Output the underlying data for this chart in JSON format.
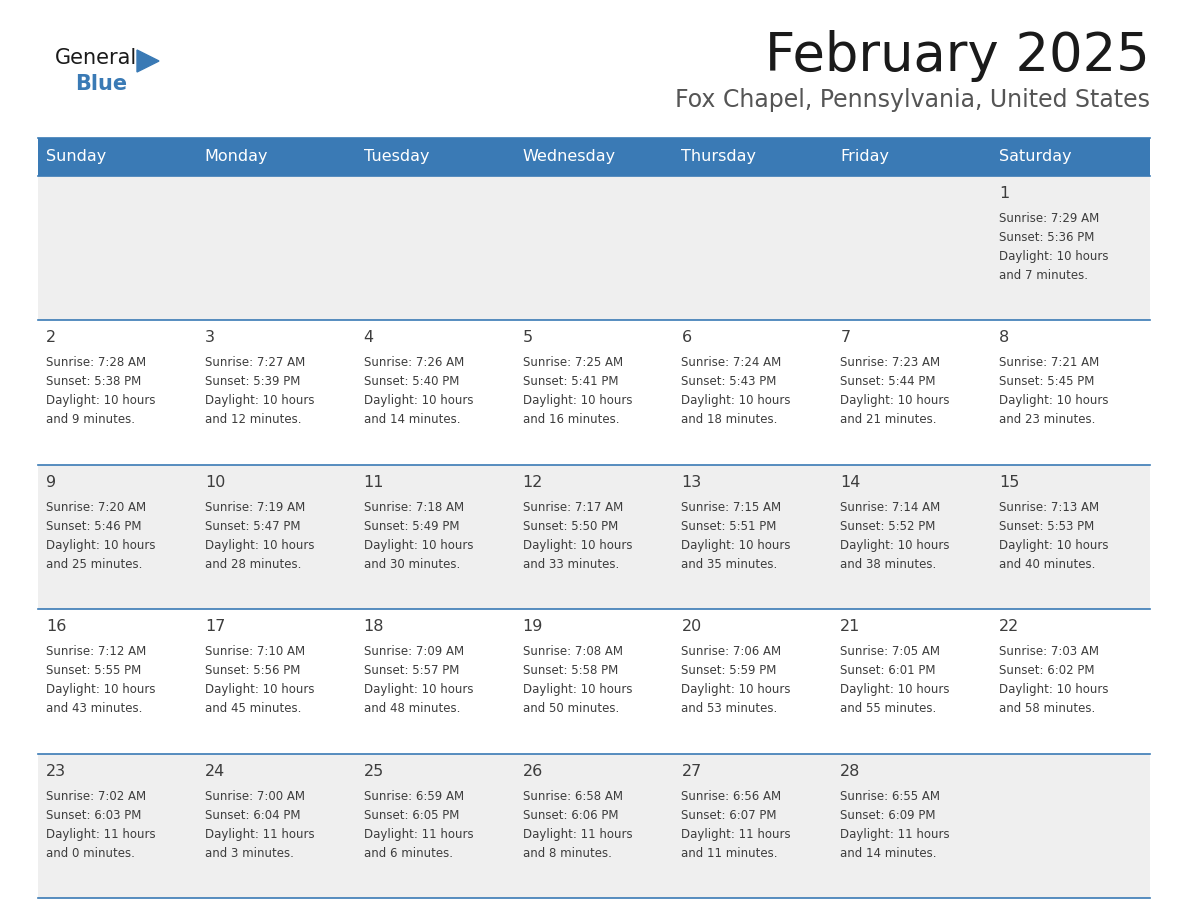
{
  "title": "February 2025",
  "subtitle": "Fox Chapel, Pennsylvania, United States",
  "header_color": "#3a7ab5",
  "header_text_color": "#ffffff",
  "cell_bg_light": "#efefef",
  "cell_bg_white": "#ffffff",
  "border_color": "#3a7ab5",
  "text_color": "#3d3d3d",
  "day_headers": [
    "Sunday",
    "Monday",
    "Tuesday",
    "Wednesday",
    "Thursday",
    "Friday",
    "Saturday"
  ],
  "calendar_data": [
    [
      null,
      null,
      null,
      null,
      null,
      null,
      {
        "day": "1",
        "sunrise": "7:29 AM",
        "sunset": "5:36 PM",
        "daylight": "10 hours",
        "daylight2": "and 7 minutes."
      }
    ],
    [
      {
        "day": "2",
        "sunrise": "7:28 AM",
        "sunset": "5:38 PM",
        "daylight": "10 hours",
        "daylight2": "and 9 minutes."
      },
      {
        "day": "3",
        "sunrise": "7:27 AM",
        "sunset": "5:39 PM",
        "daylight": "10 hours",
        "daylight2": "and 12 minutes."
      },
      {
        "day": "4",
        "sunrise": "7:26 AM",
        "sunset": "5:40 PM",
        "daylight": "10 hours",
        "daylight2": "and 14 minutes."
      },
      {
        "day": "5",
        "sunrise": "7:25 AM",
        "sunset": "5:41 PM",
        "daylight": "10 hours",
        "daylight2": "and 16 minutes."
      },
      {
        "day": "6",
        "sunrise": "7:24 AM",
        "sunset": "5:43 PM",
        "daylight": "10 hours",
        "daylight2": "and 18 minutes."
      },
      {
        "day": "7",
        "sunrise": "7:23 AM",
        "sunset": "5:44 PM",
        "daylight": "10 hours",
        "daylight2": "and 21 minutes."
      },
      {
        "day": "8",
        "sunrise": "7:21 AM",
        "sunset": "5:45 PM",
        "daylight": "10 hours",
        "daylight2": "and 23 minutes."
      }
    ],
    [
      {
        "day": "9",
        "sunrise": "7:20 AM",
        "sunset": "5:46 PM",
        "daylight": "10 hours",
        "daylight2": "and 25 minutes."
      },
      {
        "day": "10",
        "sunrise": "7:19 AM",
        "sunset": "5:47 PM",
        "daylight": "10 hours",
        "daylight2": "and 28 minutes."
      },
      {
        "day": "11",
        "sunrise": "7:18 AM",
        "sunset": "5:49 PM",
        "daylight": "10 hours",
        "daylight2": "and 30 minutes."
      },
      {
        "day": "12",
        "sunrise": "7:17 AM",
        "sunset": "5:50 PM",
        "daylight": "10 hours",
        "daylight2": "and 33 minutes."
      },
      {
        "day": "13",
        "sunrise": "7:15 AM",
        "sunset": "5:51 PM",
        "daylight": "10 hours",
        "daylight2": "and 35 minutes."
      },
      {
        "day": "14",
        "sunrise": "7:14 AM",
        "sunset": "5:52 PM",
        "daylight": "10 hours",
        "daylight2": "and 38 minutes."
      },
      {
        "day": "15",
        "sunrise": "7:13 AM",
        "sunset": "5:53 PM",
        "daylight": "10 hours",
        "daylight2": "and 40 minutes."
      }
    ],
    [
      {
        "day": "16",
        "sunrise": "7:12 AM",
        "sunset": "5:55 PM",
        "daylight": "10 hours",
        "daylight2": "and 43 minutes."
      },
      {
        "day": "17",
        "sunrise": "7:10 AM",
        "sunset": "5:56 PM",
        "daylight": "10 hours",
        "daylight2": "and 45 minutes."
      },
      {
        "day": "18",
        "sunrise": "7:09 AM",
        "sunset": "5:57 PM",
        "daylight": "10 hours",
        "daylight2": "and 48 minutes."
      },
      {
        "day": "19",
        "sunrise": "7:08 AM",
        "sunset": "5:58 PM",
        "daylight": "10 hours",
        "daylight2": "and 50 minutes."
      },
      {
        "day": "20",
        "sunrise": "7:06 AM",
        "sunset": "5:59 PM",
        "daylight": "10 hours",
        "daylight2": "and 53 minutes."
      },
      {
        "day": "21",
        "sunrise": "7:05 AM",
        "sunset": "6:01 PM",
        "daylight": "10 hours",
        "daylight2": "and 55 minutes."
      },
      {
        "day": "22",
        "sunrise": "7:03 AM",
        "sunset": "6:02 PM",
        "daylight": "10 hours",
        "daylight2": "and 58 minutes."
      }
    ],
    [
      {
        "day": "23",
        "sunrise": "7:02 AM",
        "sunset": "6:03 PM",
        "daylight": "11 hours",
        "daylight2": "and 0 minutes."
      },
      {
        "day": "24",
        "sunrise": "7:00 AM",
        "sunset": "6:04 PM",
        "daylight": "11 hours",
        "daylight2": "and 3 minutes."
      },
      {
        "day": "25",
        "sunrise": "6:59 AM",
        "sunset": "6:05 PM",
        "daylight": "11 hours",
        "daylight2": "and 6 minutes."
      },
      {
        "day": "26",
        "sunrise": "6:58 AM",
        "sunset": "6:06 PM",
        "daylight": "11 hours",
        "daylight2": "and 8 minutes."
      },
      {
        "day": "27",
        "sunrise": "6:56 AM",
        "sunset": "6:07 PM",
        "daylight": "11 hours",
        "daylight2": "and 11 minutes."
      },
      {
        "day": "28",
        "sunrise": "6:55 AM",
        "sunset": "6:09 PM",
        "daylight": "11 hours",
        "daylight2": "and 14 minutes."
      },
      null
    ]
  ]
}
